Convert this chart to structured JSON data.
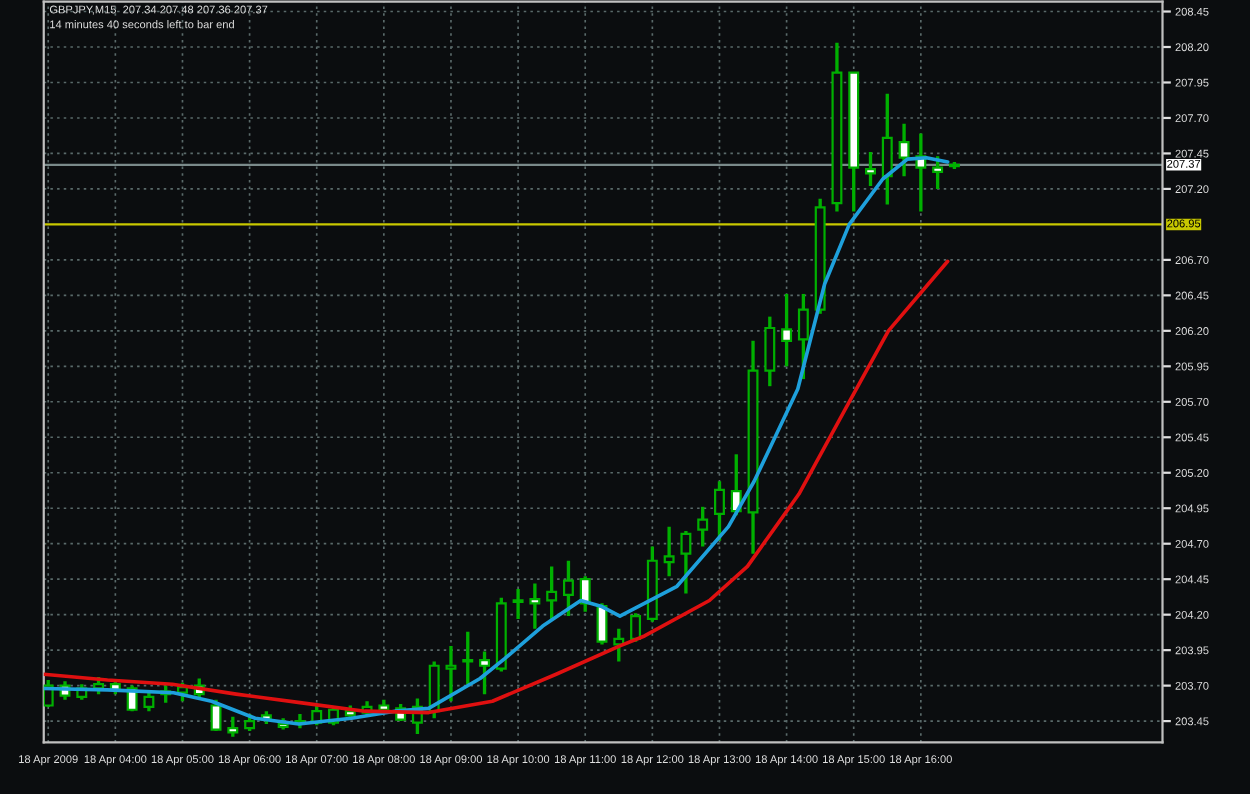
{
  "chart_data": {
    "type": "candlestick",
    "title": "GBPJPY,M15  207.34 207.48 207.36 207.37",
    "annotations": [
      "14 minutes 40 seconds left to bar end"
    ],
    "x": [
      "2009-04-18T03:00",
      "2009-04-18T03:15",
      "2009-04-18T03:30",
      "2009-04-18T03:45",
      "2009-04-18T04:00",
      "2009-04-18T04:15",
      "2009-04-18T04:30",
      "2009-04-18T04:45",
      "2009-04-18T05:00",
      "2009-04-18T05:15",
      "2009-04-18T05:30",
      "2009-04-18T05:45",
      "2009-04-18T06:00",
      "2009-04-18T06:15",
      "2009-04-18T06:30",
      "2009-04-18T06:45",
      "2009-04-18T07:00",
      "2009-04-18T07:15",
      "2009-04-18T07:30",
      "2009-04-18T07:45",
      "2009-04-18T08:00",
      "2009-04-18T08:15",
      "2009-04-18T08:30",
      "2009-04-18T08:45",
      "2009-04-18T09:00",
      "2009-04-18T09:15",
      "2009-04-18T09:30",
      "2009-04-18T09:45",
      "2009-04-18T10:00",
      "2009-04-18T10:15",
      "2009-04-18T10:30",
      "2009-04-18T10:45",
      "2009-04-18T11:00",
      "2009-04-18T11:15",
      "2009-04-18T11:30",
      "2009-04-18T11:45",
      "2009-04-18T12:00",
      "2009-04-18T12:15",
      "2009-04-18T12:30",
      "2009-04-18T12:45",
      "2009-04-18T13:00",
      "2009-04-18T13:15",
      "2009-04-18T13:30",
      "2009-04-18T13:45",
      "2009-04-18T14:00",
      "2009-04-18T14:15",
      "2009-04-18T14:30",
      "2009-04-18T14:45",
      "2009-04-18T15:00",
      "2009-04-18T15:15",
      "2009-04-18T15:30",
      "2009-04-18T15:45",
      "2009-04-18T16:00",
      "2009-04-18T16:15",
      "2009-04-18T16:30"
    ],
    "ohlc": [
      [
        203.56,
        203.74,
        203.55,
        203.7
      ],
      [
        203.7,
        203.73,
        203.6,
        203.63
      ],
      [
        203.62,
        203.71,
        203.6,
        203.68
      ],
      [
        203.68,
        203.76,
        203.64,
        203.71
      ],
      [
        203.71,
        203.73,
        203.64,
        203.67
      ],
      [
        203.68,
        203.7,
        203.52,
        203.53
      ],
      [
        203.55,
        203.66,
        203.52,
        203.62
      ],
      [
        203.64,
        203.7,
        203.58,
        203.66
      ],
      [
        203.65,
        203.72,
        203.59,
        203.69
      ],
      [
        203.7,
        203.75,
        203.62,
        203.64
      ],
      [
        203.56,
        203.6,
        203.38,
        203.39
      ],
      [
        203.4,
        203.48,
        203.34,
        203.37
      ],
      [
        203.4,
        203.5,
        203.38,
        203.45
      ],
      [
        203.49,
        203.52,
        203.43,
        203.46
      ],
      [
        203.43,
        203.47,
        203.39,
        203.41
      ],
      [
        203.44,
        203.5,
        203.4,
        203.45
      ],
      [
        203.44,
        203.57,
        203.42,
        203.52
      ],
      [
        203.44,
        203.55,
        203.42,
        203.53
      ],
      [
        203.52,
        203.56,
        203.46,
        203.49
      ],
      [
        203.51,
        203.59,
        203.48,
        203.55
      ],
      [
        203.56,
        203.6,
        203.51,
        203.53
      ],
      [
        203.54,
        203.57,
        203.45,
        203.46
      ],
      [
        203.44,
        203.61,
        203.36,
        203.55
      ],
      [
        203.52,
        203.87,
        203.47,
        203.84
      ],
      [
        203.82,
        203.98,
        203.59,
        203.84
      ],
      [
        203.87,
        204.08,
        203.71,
        203.88
      ],
      [
        203.88,
        203.94,
        203.64,
        203.84
      ],
      [
        203.82,
        204.32,
        203.8,
        204.28
      ],
      [
        204.29,
        204.38,
        204.17,
        204.3
      ],
      [
        204.31,
        204.42,
        204.1,
        204.28
      ],
      [
        204.3,
        204.54,
        204.17,
        204.36
      ],
      [
        204.34,
        204.58,
        204.19,
        204.44
      ],
      [
        204.45,
        204.47,
        204.22,
        204.28
      ],
      [
        204.26,
        204.28,
        203.99,
        204.01
      ],
      [
        203.99,
        204.1,
        203.87,
        204.03
      ],
      [
        204.03,
        204.21,
        204.01,
        204.19
      ],
      [
        204.17,
        204.68,
        204.15,
        204.58
      ],
      [
        204.57,
        204.82,
        204.47,
        204.61
      ],
      [
        204.63,
        204.79,
        204.35,
        204.77
      ],
      [
        204.8,
        204.96,
        204.68,
        204.87
      ],
      [
        204.91,
        205.14,
        204.72,
        205.08
      ],
      [
        205.07,
        205.33,
        204.9,
        204.93
      ],
      [
        204.92,
        206.13,
        204.63,
        205.92
      ],
      [
        205.92,
        206.3,
        205.81,
        206.22
      ],
      [
        206.21,
        206.46,
        205.95,
        206.13
      ],
      [
        206.14,
        206.46,
        205.86,
        206.35
      ],
      [
        206.35,
        207.13,
        206.32,
        207.07
      ],
      [
        207.1,
        208.23,
        207.04,
        208.02
      ],
      [
        208.02,
        208.02,
        207.04,
        207.35
      ],
      [
        207.34,
        207.46,
        207.22,
        207.31
      ],
      [
        207.29,
        207.87,
        207.09,
        207.56
      ],
      [
        207.53,
        207.66,
        207.29,
        207.42
      ],
      [
        207.43,
        207.59,
        207.04,
        207.35
      ],
      [
        207.35,
        207.43,
        207.2,
        207.32
      ],
      [
        207.36,
        207.39,
        207.34,
        207.37
      ]
    ],
    "series": [
      {
        "type": "line",
        "color": "#1ea0dc",
        "x": [
          "2009-04-18T02:56",
          "2009-04-18T03:53",
          "2009-04-18T04:52",
          "2009-04-18T05:26",
          "2009-04-18T06:05",
          "2009-04-18T06:44",
          "2009-04-18T07:31",
          "2009-04-18T08:10",
          "2009-04-18T08:40",
          "2009-04-18T09:26",
          "2009-04-18T09:48",
          "2009-04-18T10:22",
          "2009-04-18T10:56",
          "2009-04-18T11:14",
          "2009-04-18T11:31",
          "2009-04-18T12:22",
          "2009-04-18T13:08",
          "2009-04-18T13:31",
          "2009-04-18T14:10",
          "2009-04-18T14:34",
          "2009-04-18T14:56",
          "2009-04-18T15:26",
          "2009-04-18T15:48",
          "2009-04-18T16:05",
          "2009-04-18T16:24"
        ],
        "values": [
          203.68,
          203.67,
          203.65,
          203.59,
          203.47,
          203.43,
          203.47,
          203.52,
          203.54,
          203.75,
          203.89,
          204.12,
          204.3,
          204.26,
          204.19,
          204.4,
          204.82,
          205.14,
          205.79,
          206.53,
          206.95,
          207.27,
          207.41,
          207.42,
          207.39
        ]
      },
      {
        "type": "line",
        "color": "#e01010",
        "x": [
          "2009-04-18T02:56",
          "2009-04-18T03:53",
          "2009-04-18T04:51",
          "2009-04-18T05:48",
          "2009-04-18T06:45",
          "2009-04-18T07:43",
          "2009-04-18T08:40",
          "2009-04-18T09:37",
          "2009-04-18T10:34",
          "2009-04-18T11:31",
          "2009-04-18T11:53",
          "2009-04-18T12:51",
          "2009-04-18T13:25",
          "2009-04-18T14:11",
          "2009-04-18T14:56",
          "2009-04-18T15:31",
          "2009-04-18T16:24"
        ],
        "values": [
          203.78,
          203.74,
          203.71,
          203.64,
          203.58,
          203.52,
          203.51,
          203.59,
          203.78,
          203.98,
          204.05,
          204.3,
          204.54,
          205.05,
          205.7,
          206.2,
          206.69
        ]
      }
    ],
    "xlim": [
      "2009-04-18T02:56",
      "2009-04-18T19:36"
    ],
    "xticks": [
      {
        "value": "2009-04-18T03:00",
        "label": "18 Apr 2009"
      },
      {
        "value": "2009-04-18T04:00",
        "label": "18 Apr 04:00"
      },
      {
        "value": "2009-04-18T05:00",
        "label": "18 Apr 05:00"
      },
      {
        "value": "2009-04-18T06:00",
        "label": "18 Apr 06:00"
      },
      {
        "value": "2009-04-18T07:00",
        "label": "18 Apr 07:00"
      },
      {
        "value": "2009-04-18T08:00",
        "label": "18 Apr 08:00"
      },
      {
        "value": "2009-04-18T09:00",
        "label": "18 Apr 09:00"
      },
      {
        "value": "2009-04-18T10:00",
        "label": "18 Apr 10:00"
      },
      {
        "value": "2009-04-18T11:00",
        "label": "18 Apr 11:00"
      },
      {
        "value": "2009-04-18T12:00",
        "label": "18 Apr 12:00"
      },
      {
        "value": "2009-04-18T13:00",
        "label": "18 Apr 13:00"
      },
      {
        "value": "2009-04-18T14:00",
        "label": "18 Apr 14:00"
      },
      {
        "value": "2009-04-18T15:00",
        "label": "18 Apr 15:00"
      },
      {
        "value": "2009-04-18T16:00",
        "label": "18 Apr 16:00"
      }
    ],
    "ylim": [
      203.3,
      208.52
    ],
    "yticks": [
      208.45,
      {
        "value": 208.2,
        "label": "208.20"
      },
      207.95,
      {
        "value": 207.7,
        "label": "207.70"
      },
      207.45,
      {
        "value": 207.2,
        "label": "207.20"
      },
      {
        "value": 206.7,
        "label": "206.70"
      },
      206.45,
      {
        "value": 206.2,
        "label": "206.20"
      },
      205.95,
      {
        "value": 205.7,
        "label": "205.70"
      },
      205.45,
      {
        "value": 205.2,
        "label": "205.20"
      },
      204.95,
      {
        "value": 204.7,
        "label": "204.70"
      },
      204.45,
      {
        "value": 204.2,
        "label": "204.20"
      },
      203.95,
      {
        "value": 203.7,
        "label": "203.70"
      },
      203.45
    ],
    "ref_lines": [
      {
        "axis": "y",
        "value": 207.37,
        "label": "207.37",
        "color": "#7a8a8a"
      },
      {
        "axis": "y",
        "value": 206.95,
        "label": "206.95",
        "color": "#c8c800"
      }
    ],
    "grid": true
  }
}
